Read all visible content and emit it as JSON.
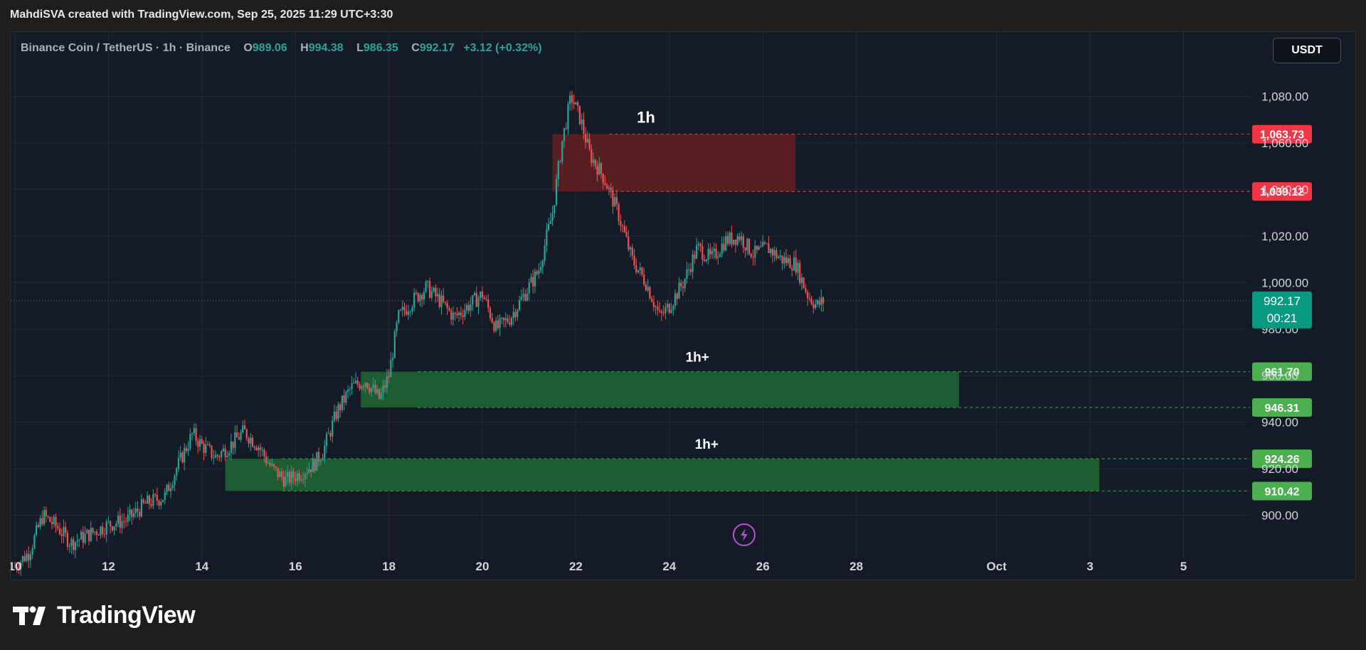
{
  "header": {
    "text": "MahdiSVA created with TradingView.com, Sep 25, 2025 11:29 UTC+3:30"
  },
  "legend": {
    "symbol": "Binance Coin / TetherUS · 1h · Binance",
    "open_label": "O",
    "open": "989.06",
    "high_label": "H",
    "high": "994.38",
    "low_label": "L",
    "low": "986.35",
    "close_label": "C",
    "close": "992.17",
    "change": "+3.12 (+0.32%)"
  },
  "unit_button": {
    "label": "USDT"
  },
  "brand": {
    "name": "TradingView",
    "icon": "tradingview-logo-icon"
  },
  "lightning_icon": "lightning-icon",
  "colors": {
    "up": "#26a69a",
    "down": "#ef5350",
    "supply_zone": "#5c1f22",
    "demand_zone": "#1e5f31",
    "red_badge": "#f23645",
    "green_badge": "#4caf50",
    "last_price_badge": "#089981"
  },
  "chart_data": {
    "type": "candlestick",
    "symbol": "BNBUSDT",
    "timeframe": "1h",
    "x_ticks": [
      "10",
      "12",
      "14",
      "16",
      "18",
      "20",
      "22",
      "24",
      "26",
      "28",
      "Oct",
      "3",
      "5"
    ],
    "y_ticks": [
      "900.00",
      "920.00",
      "940.00",
      "960.00",
      "980.00",
      "1,000.00",
      "1,020.00",
      "1,040.00",
      "1,060.00",
      "1,080.00"
    ],
    "ylim": [
      880,
      1100
    ],
    "last_price": {
      "value": "992.17",
      "countdown": "00:21"
    },
    "ohlc": {
      "open": 989.06,
      "high": 994.38,
      "low": 986.35,
      "close": 992.17
    },
    "price_path": [
      [
        10.0,
        878
      ],
      [
        10.3,
        884
      ],
      [
        10.6,
        900
      ],
      [
        10.9,
        895
      ],
      [
        11.2,
        888
      ],
      [
        11.6,
        892
      ],
      [
        12.0,
        896
      ],
      [
        12.4,
        898
      ],
      [
        12.8,
        905
      ],
      [
        13.2,
        908
      ],
      [
        13.5,
        922
      ],
      [
        13.8,
        935
      ],
      [
        14.0,
        930
      ],
      [
        14.3,
        925
      ],
      [
        14.6,
        930
      ],
      [
        14.9,
        936
      ],
      [
        15.2,
        930
      ],
      [
        15.5,
        920
      ],
      [
        15.8,
        915
      ],
      [
        16.1,
        918
      ],
      [
        16.4,
        922
      ],
      [
        16.6,
        928
      ],
      [
        16.9,
        945
      ],
      [
        17.2,
        955
      ],
      [
        17.5,
        958
      ],
      [
        17.8,
        950
      ],
      [
        18.0,
        960
      ],
      [
        18.2,
        985
      ],
      [
        18.5,
        992
      ],
      [
        18.8,
        998
      ],
      [
        19.1,
        992
      ],
      [
        19.4,
        985
      ],
      [
        19.7,
        990
      ],
      [
        20.0,
        995
      ],
      [
        20.3,
        980
      ],
      [
        20.6,
        985
      ],
      [
        20.9,
        995
      ],
      [
        21.2,
        1005
      ],
      [
        21.5,
        1030
      ],
      [
        21.7,
        1060
      ],
      [
        21.9,
        1080
      ],
      [
        22.1,
        1070
      ],
      [
        22.3,
        1055
      ],
      [
        22.6,
        1045
      ],
      [
        22.9,
        1030
      ],
      [
        23.2,
        1010
      ],
      [
        23.5,
        1000
      ],
      [
        23.8,
        985
      ],
      [
        24.0,
        990
      ],
      [
        24.3,
        1000
      ],
      [
        24.6,
        1015
      ],
      [
        24.9,
        1010
      ],
      [
        25.2,
        1018
      ],
      [
        25.5,
        1020
      ],
      [
        25.8,
        1012
      ],
      [
        26.1,
        1015
      ],
      [
        26.4,
        1010
      ],
      [
        26.7,
        1008
      ],
      [
        26.95,
        995
      ],
      [
        27.15,
        990
      ],
      [
        27.3,
        992
      ]
    ],
    "zones": [
      {
        "type": "supply",
        "label": "1h",
        "x_from": 21.5,
        "x_to": 26.7,
        "y_top": 1063.73,
        "y_bottom": 1039.12,
        "badge_top": "1,063.73",
        "badge_bottom": "1,039.12"
      },
      {
        "type": "demand",
        "label": "1h+",
        "x_from": 17.4,
        "x_to": 30.2,
        "y_top": 961.7,
        "y_bottom": 946.31,
        "badge_top": "961.70",
        "badge_bottom": "946.31"
      },
      {
        "type": "demand",
        "label": "1h+",
        "x_from": 14.5,
        "x_to": 33.2,
        "y_top": 924.26,
        "y_bottom": 910.42,
        "badge_top": "924.26",
        "badge_bottom": "910.42"
      }
    ]
  }
}
